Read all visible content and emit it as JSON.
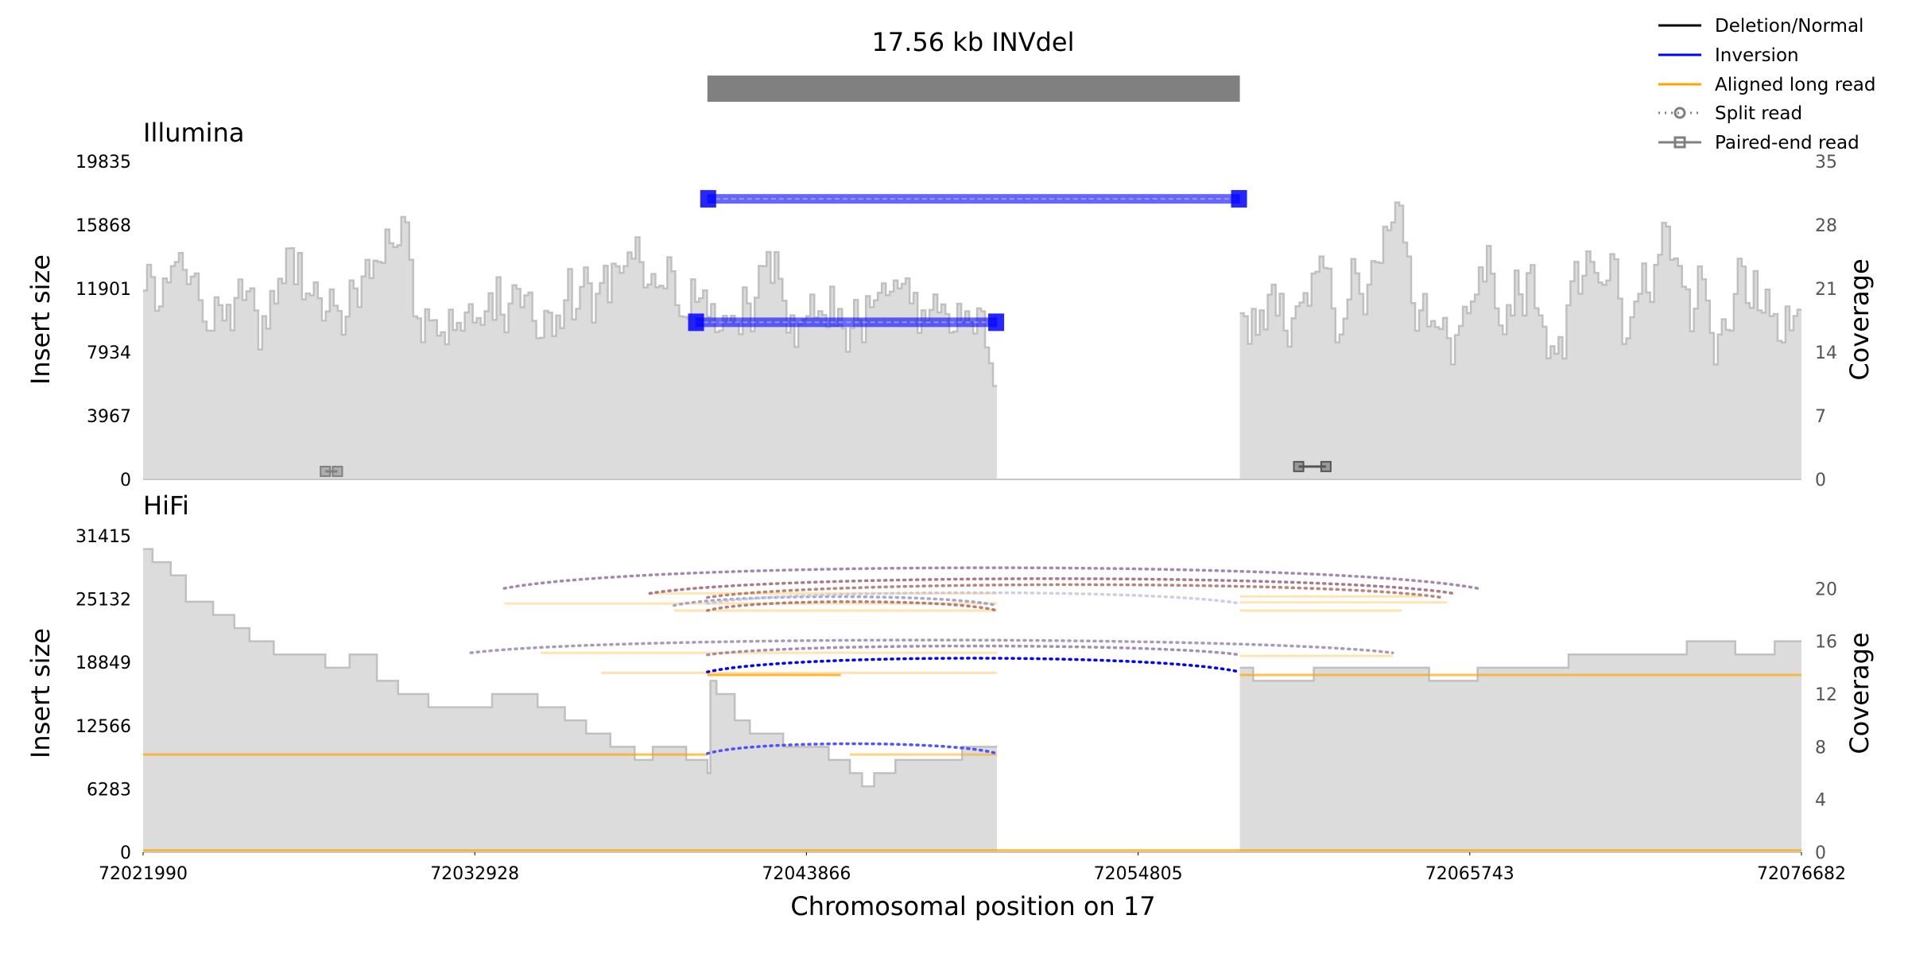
{
  "chart_data": {
    "type": "line",
    "title": "17.56 kb INVdel",
    "xlabel": "Chromosomal position on 17",
    "xlim": [
      72021990,
      72076682
    ],
    "xticks": [
      "72021990",
      "72032928",
      "72043866",
      "72054805",
      "72065743",
      "72076682"
    ],
    "event": {
      "start": 72040600,
      "end": 72058160,
      "color": "#808080"
    },
    "legend": {
      "placement": "top-right",
      "entries": [
        {
          "label": "Deletion/Normal",
          "color": "#000000",
          "style": "solid"
        },
        {
          "label": "Inversion",
          "color": "#0000ff",
          "style": "solid"
        },
        {
          "label": "Aligned long read",
          "color": "#ffa500",
          "style": "solid"
        },
        {
          "label": "Split read",
          "color": "#808080",
          "style": "dotted-circle"
        },
        {
          "label": "Paired-end read",
          "color": "#808080",
          "style": "solid-square"
        }
      ]
    },
    "panels": [
      {
        "name": "Illumina",
        "ylabel": "Insert size",
        "ylabel_right": "Coverage",
        "ylim": [
          0,
          19835
        ],
        "yticks": [
          "0",
          "3967",
          "7934",
          "11901",
          "15868",
          "19835"
        ],
        "ylim_right": [
          0,
          35
        ],
        "yticks_right": [
          "0",
          "7",
          "14",
          "21",
          "28",
          "35"
        ],
        "coverage": {
          "color": "#c0c0c0",
          "segments": [
            {
              "start": 72021990,
              "end": 72050150,
              "seed": 7,
              "mean": 20,
              "amp": 5.5,
              "lo": 10,
              "hi": 33
            },
            {
              "start": 72058160,
              "end": 72076682,
              "seed": 13,
              "mean": 20,
              "amp": 5.5,
              "lo": 10,
              "hi": 33
            }
          ],
          "zero_between": [
            72050150,
            72058160
          ]
        },
        "paired_reads": [
          {
            "start": 72040600,
            "end": 72058160,
            "y": 17500,
            "color": "#0000ff"
          },
          {
            "start": 72040200,
            "end": 72050150,
            "y": 9800,
            "color": "#0000ff"
          },
          {
            "start": 72028000,
            "end": 72028400,
            "y": 500,
            "color": "#808080"
          },
          {
            "start": 72060100,
            "end": 72061000,
            "y": 800,
            "color": "#555555"
          }
        ]
      },
      {
        "name": "HiFi",
        "ylabel": "Insert size",
        "ylabel_right": "Coverage",
        "ylim": [
          0,
          31415
        ],
        "yticks": [
          "0",
          "6283",
          "12566",
          "18849",
          "25132",
          "31415"
        ],
        "ylim_right": [
          0,
          24
        ],
        "yticks_right": [
          "0",
          "4",
          "8",
          "12",
          "16",
          "20"
        ],
        "coverage": {
          "color": "#c0c0c0",
          "steps": [
            [
              72021990,
              23
            ],
            [
              72022300,
              22
            ],
            [
              72022900,
              21
            ],
            [
              72023400,
              19
            ],
            [
              72024300,
              18
            ],
            [
              72025000,
              17
            ],
            [
              72025500,
              16
            ],
            [
              72026300,
              15
            ],
            [
              72028000,
              14
            ],
            [
              72028800,
              15
            ],
            [
              72029700,
              13
            ],
            [
              72030400,
              12
            ],
            [
              72031400,
              11
            ],
            [
              72033500,
              12
            ],
            [
              72035000,
              11
            ],
            [
              72035900,
              10
            ],
            [
              72036600,
              9
            ],
            [
              72037400,
              8
            ],
            [
              72038200,
              7
            ],
            [
              72038800,
              8
            ],
            [
              72039900,
              7
            ],
            [
              72040600,
              6
            ],
            [
              72040700,
              13
            ],
            [
              72040900,
              12
            ],
            [
              72041500,
              10
            ],
            [
              72042000,
              9
            ],
            [
              72043100,
              8
            ],
            [
              72044600,
              7
            ],
            [
              72045300,
              6
            ],
            [
              72045700,
              5
            ],
            [
              72046100,
              6
            ],
            [
              72046800,
              7
            ],
            [
              72049000,
              8
            ],
            [
              72050150,
              0
            ],
            [
              72058160,
              14
            ],
            [
              72058600,
              13
            ],
            [
              72060600,
              14
            ],
            [
              72062600,
              14
            ],
            [
              72064400,
              13
            ],
            [
              72066000,
              14
            ],
            [
              72069000,
              15
            ],
            [
              72071000,
              15
            ],
            [
              72072900,
              16
            ],
            [
              72074500,
              15
            ],
            [
              72075800,
              16
            ],
            [
              72076682,
              16
            ]
          ]
        },
        "aligned_reads": [
          {
            "start": 72021990,
            "end": 72040600,
            "y": 9700,
            "color": "#ffa500",
            "alpha": 0.7
          },
          {
            "start": 72021990,
            "end": 72076682,
            "y": 200,
            "color": "#ffa500",
            "alpha": 0.7
          },
          {
            "start": 72058160,
            "end": 72076682,
            "y": 17600,
            "color": "#ffa500",
            "alpha": 0.7
          },
          {
            "start": 72040600,
            "end": 72045000,
            "y": 17600,
            "color": "#ffa500",
            "alpha": 0.8
          },
          {
            "start": 72037100,
            "end": 72050150,
            "y": 17800,
            "color": "#ffa500",
            "alpha": 0.3
          },
          {
            "start": 72035100,
            "end": 72050150,
            "y": 19800,
            "color": "#ffa500",
            "alpha": 0.3
          },
          {
            "start": 72033900,
            "end": 72050150,
            "y": 24700,
            "color": "#ffa500",
            "alpha": 0.3
          },
          {
            "start": 72038700,
            "end": 72050150,
            "y": 25700,
            "color": "#ffa500",
            "alpha": 0.3
          },
          {
            "start": 72039500,
            "end": 72050150,
            "y": 24000,
            "color": "#ffa500",
            "alpha": 0.3
          },
          {
            "start": 72045300,
            "end": 72050150,
            "y": 9700,
            "color": "#ffa500",
            "alpha": 0.5
          },
          {
            "start": 72058160,
            "end": 72063200,
            "y": 19500,
            "color": "#ffa500",
            "alpha": 0.3
          },
          {
            "start": 72058160,
            "end": 72064200,
            "y": 25400,
            "color": "#ffa500",
            "alpha": 0.3
          },
          {
            "start": 72058160,
            "end": 72065000,
            "y": 24800,
            "color": "#ffa500",
            "alpha": 0.3
          },
          {
            "start": 72058160,
            "end": 72063500,
            "y": 24000,
            "color": "#ffa500",
            "alpha": 0.3
          }
        ],
        "split_reads": [
          {
            "start": 72033900,
            "end": 72066000,
            "y": 26200,
            "color": "#9a7aa8",
            "alpha": 0.9,
            "rise": 2100
          },
          {
            "start": 72038700,
            "end": 72065200,
            "y": 25700,
            "color": "#a06a80",
            "alpha": 0.9,
            "rise": 1500
          },
          {
            "start": 72040600,
            "end": 72064800,
            "y": 25300,
            "color": "#b0786a",
            "alpha": 0.9,
            "rise": 1300
          },
          {
            "start": 72039500,
            "end": 72050150,
            "y": 24500,
            "color": "#9090c8",
            "alpha": 0.8,
            "rise": 900
          },
          {
            "start": 72040600,
            "end": 72058160,
            "y": 24700,
            "color": "#c0c0e0",
            "alpha": 0.8,
            "rise": 1100
          },
          {
            "start": 72040600,
            "end": 72050150,
            "y": 24000,
            "color": "#a06060",
            "alpha": 0.8,
            "rise": 900
          },
          {
            "start": 72032800,
            "end": 72063200,
            "y": 19800,
            "color": "#a090b0",
            "alpha": 0.9,
            "rise": 1300
          },
          {
            "start": 72040600,
            "end": 72058160,
            "y": 19600,
            "color": "#9070a0",
            "alpha": 0.8,
            "rise": 900
          },
          {
            "start": 72040600,
            "end": 72058160,
            "y": 17900,
            "color": "#0000ff",
            "alpha": 1.0,
            "rise": 1400
          },
          {
            "start": 72040600,
            "end": 72050150,
            "y": 9800,
            "color": "#4040ff",
            "alpha": 0.9,
            "rise": 1000
          }
        ]
      }
    ]
  }
}
